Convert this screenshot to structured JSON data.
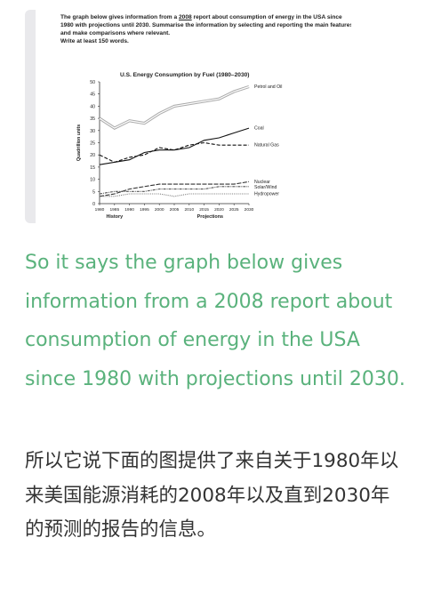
{
  "task_prompt": {
    "part1": "The graph below gives information from a ",
    "underlined": "2008",
    "part2": " report about consumption of energy in the USA since 1980 with projections until 2030. Summarise the information by selecting and reporting the main features and make comparisons where relevant.",
    "part3": "Write at least 150 words."
  },
  "chart_data": {
    "type": "line",
    "title": "U.S. Energy Consumption by Fuel (1980–2030)",
    "ylabel": "Quadrillion units",
    "xlabel_left": "History",
    "xlabel_right": "Projections",
    "ylim": [
      0,
      50
    ],
    "yticks": [
      "0",
      "5",
      "10",
      "15",
      "20",
      "25",
      "30",
      "35",
      "40",
      "45",
      "50"
    ],
    "xticks": [
      "1980",
      "1985",
      "1990",
      "1995",
      "2000",
      "2005",
      "2010",
      "2015",
      "2020",
      "2025",
      "2030"
    ],
    "x": [
      1980,
      1985,
      1990,
      1995,
      2000,
      2005,
      2010,
      2015,
      2020,
      2025,
      2030
    ],
    "grid": false,
    "legend": "inline labels at line ends",
    "series": [
      {
        "name": "Petrol and Oil",
        "values": [
          35,
          31,
          34,
          33,
          37,
          40,
          41,
          42,
          43,
          46,
          48
        ],
        "color": "#aaaaaa",
        "style": "double"
      },
      {
        "name": "Coal",
        "values": [
          16,
          17,
          18,
          21,
          22,
          22,
          23,
          26,
          27,
          29,
          31
        ],
        "color": "#111111",
        "style": "solid"
      },
      {
        "name": "Natural Gas",
        "values": [
          20,
          17,
          19,
          20,
          23,
          22,
          24,
          25,
          24,
          24,
          24
        ],
        "color": "#111111",
        "style": "dashed"
      },
      {
        "name": "Nuclear",
        "values": [
          3,
          4,
          6,
          7,
          8,
          8,
          8,
          8,
          8,
          8,
          9
        ],
        "color": "#333333",
        "style": "longdash"
      },
      {
        "name": "Solar/Wind",
        "values": [
          4,
          5,
          5,
          5,
          6,
          6,
          6,
          6,
          7,
          7,
          7
        ],
        "color": "#555555",
        "style": "dashdot"
      },
      {
        "name": "Hydropower",
        "values": [
          3,
          3,
          4,
          4,
          4,
          3,
          4,
          4,
          4,
          4,
          4
        ],
        "color": "#777777",
        "style": "dotted"
      }
    ]
  },
  "caption_en": "So it says the graph below gives information from a 2008 report about consumption of energy in the USA since 1980 with projections until 2030.",
  "caption_cn": "所以它说下面的图提供了来自关于1980年以来美国能源消耗的2008年以及直到2030年的预测的报告的信息。",
  "colors": {
    "accent_green": "#5ab27c",
    "card_border": "#e9e9ec"
  }
}
